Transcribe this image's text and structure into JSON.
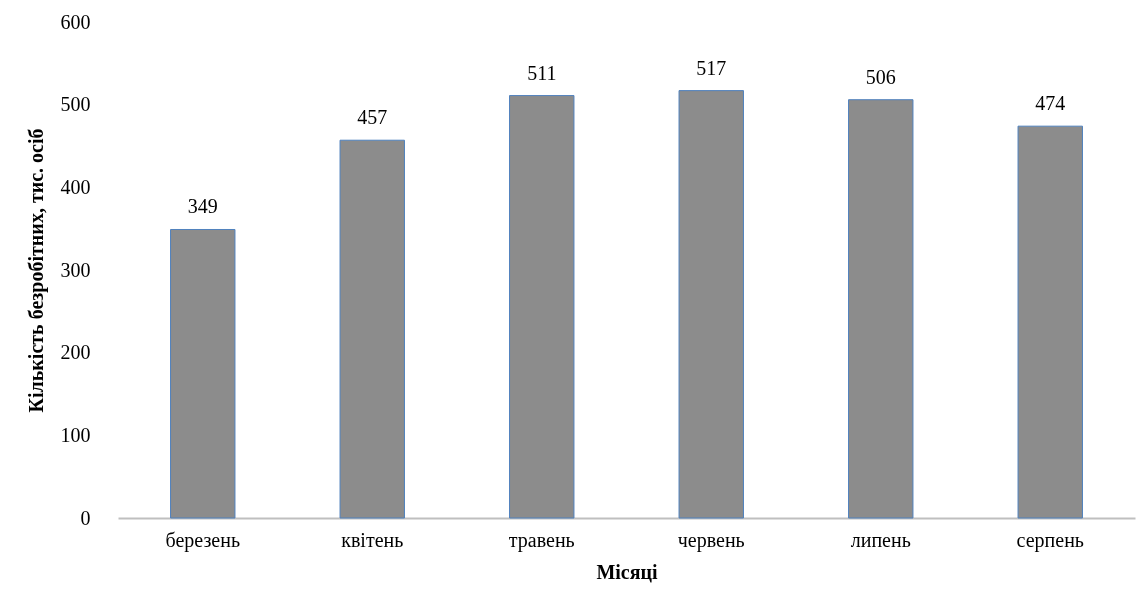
{
  "chart_data": {
    "type": "bar",
    "xlabel": "Місяці",
    "ylabel": "Кількість безробітних, тис. осіб",
    "categories": [
      "березень",
      "квітень",
      "травень",
      "червень",
      "липень",
      "серпень"
    ],
    "values": [
      349,
      457,
      511,
      517,
      506,
      474
    ],
    "color": "#8c8c8c",
    "ylim": [
      0,
      600
    ],
    "yticks": [
      0,
      100,
      200,
      300,
      400,
      500,
      600
    ],
    "grid": false,
    "data_labels": true
  }
}
